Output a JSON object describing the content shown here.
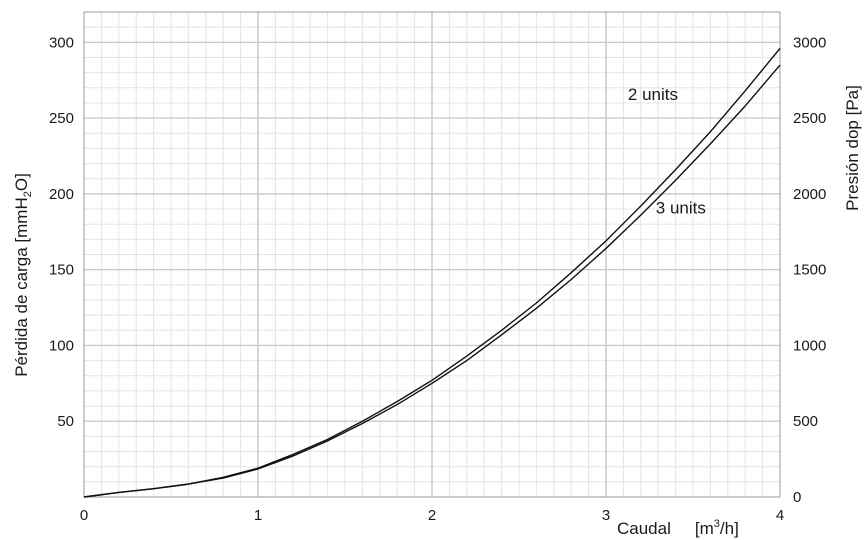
{
  "chart_data": {
    "type": "line",
    "x": [
      0,
      0.2,
      0.4,
      0.6,
      0.8,
      1.0,
      1.2,
      1.4,
      1.6,
      1.8,
      2.0,
      2.2,
      2.4,
      2.6,
      2.8,
      3.0,
      3.2,
      3.4,
      3.6,
      3.8,
      4.0
    ],
    "series": [
      {
        "name": "2 units",
        "values": [
          0,
          3,
          5.5,
          8.5,
          13,
          19,
          28,
          38,
          50,
          63,
          77,
          93,
          110,
          128,
          148,
          169,
          192,
          216,
          241,
          268,
          296
        ]
      },
      {
        "name": "3 units",
        "values": [
          0,
          3,
          5.5,
          8.5,
          12.5,
          18.5,
          27,
          37,
          48.5,
          61,
          75,
          90,
          107,
          124.5,
          143.5,
          164,
          186,
          209,
          233,
          258,
          285
        ]
      }
    ],
    "xlabel_main": "Caudal",
    "xlabel_unit": "[m",
    "xlabel_unit_sup": "3",
    "xlabel_unit_end": "/h]",
    "ylabel_left": "Pérdida de carga [mmH",
    "ylabel_left_sub": "2",
    "ylabel_left_end": "O]",
    "ylabel_right": "Presión dop [Pa]",
    "xlim": [
      0,
      4
    ],
    "ylim_left": [
      0,
      320
    ],
    "ylim_right": [
      0,
      3200
    ],
    "x_ticks": [
      "0",
      "1",
      "2",
      "3",
      "4"
    ],
    "y_ticks_left": [
      "50",
      "100",
      "150",
      "200",
      "250",
      "300"
    ],
    "y_ticks_right": [
      "0",
      "500",
      "1000",
      "1500",
      "2000",
      "2500",
      "3000"
    ],
    "grid": true,
    "line_color": "#111111",
    "grid_major_color": "#c8cad6",
    "grid_minor_color": "#e3e4ea"
  }
}
